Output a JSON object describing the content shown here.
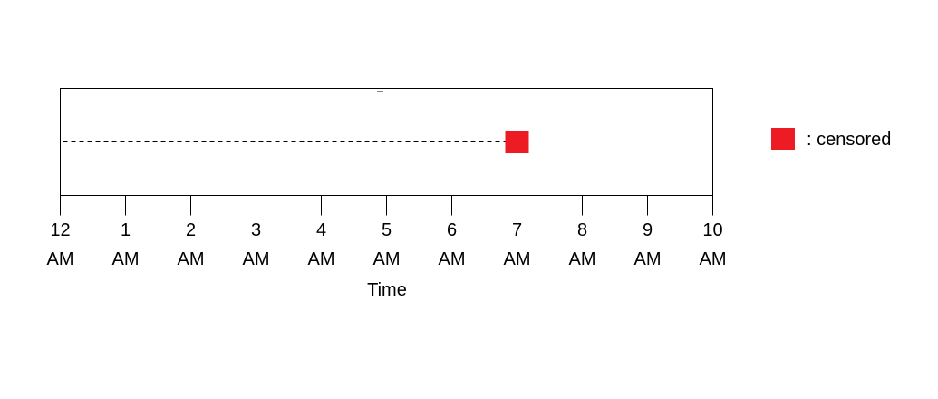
{
  "chart_data": {
    "type": "scatter",
    "title": "",
    "xlabel": "Time",
    "ylabel": "",
    "x_ticks": [
      {
        "hour": 0,
        "line1": "12",
        "line2": "AM"
      },
      {
        "hour": 1,
        "line1": "1",
        "line2": "AM"
      },
      {
        "hour": 2,
        "line1": "2",
        "line2": "AM"
      },
      {
        "hour": 3,
        "line1": "3",
        "line2": "AM"
      },
      {
        "hour": 4,
        "line1": "4",
        "line2": "AM"
      },
      {
        "hour": 5,
        "line1": "5",
        "line2": "AM"
      },
      {
        "hour": 6,
        "line1": "6",
        "line2": "AM"
      },
      {
        "hour": 7,
        "line1": "7",
        "line2": "AM"
      },
      {
        "hour": 8,
        "line1": "8",
        "line2": "AM"
      },
      {
        "hour": 9,
        "line1": "9",
        "line2": "AM"
      },
      {
        "hour": 10,
        "line1": "10",
        "line2": "AM"
      }
    ],
    "xlim": [
      0,
      10
    ],
    "grid": false,
    "follow_up": {
      "start_hour": 0,
      "end_hour": 7,
      "line_style": "dashed",
      "event": "censored",
      "marker_color": "#ed1c24"
    },
    "legend": {
      "position": "right",
      "entries": [
        {
          "label": ": censored",
          "color": "#ed1c24",
          "marker": "square"
        }
      ]
    }
  }
}
